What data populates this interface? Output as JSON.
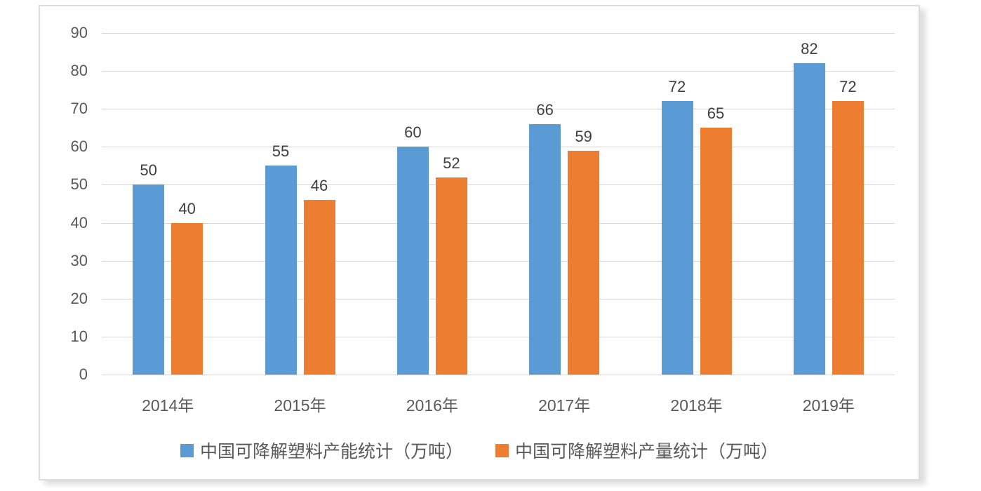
{
  "chart_data": {
    "type": "bar",
    "title": "",
    "xlabel": "",
    "ylabel": "",
    "categories": [
      "2014年",
      "2015年",
      "2016年",
      "2017年",
      "2018年",
      "2019年"
    ],
    "series": [
      {
        "key": "capacity",
        "name": "中国可降解塑料产能统计（万吨）",
        "color": "#5B9BD5",
        "values": [
          50,
          55,
          60,
          66,
          72,
          82
        ]
      },
      {
        "key": "output",
        "name": "中国可降解塑料产量统计（万吨）",
        "color": "#ED7D31",
        "values": [
          40,
          46,
          52,
          59,
          65,
          72
        ]
      }
    ],
    "ylim": [
      0,
      90
    ],
    "yticks": [
      0,
      10,
      20,
      30,
      40,
      50,
      60,
      70,
      80,
      90
    ],
    "grid": true,
    "data_labels": true,
    "legend_position": "bottom"
  },
  "colors": {
    "series_capacity": "#5B9BD5",
    "series_output": "#ED7D31",
    "gridline": "#d6d6d6",
    "axis_text": "#595959",
    "value_label_text": "#3f3f3f",
    "frame_border": "#dcdcdc",
    "background": "#ffffff"
  }
}
